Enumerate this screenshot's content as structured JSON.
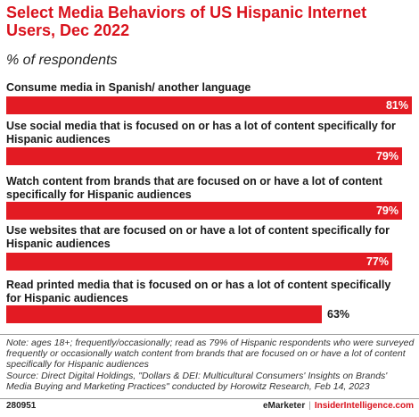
{
  "header": {
    "title": "Select Media Behaviors of US Hispanic Internet Users, Dec 2022",
    "subtitle": "% of respondents"
  },
  "chart_data": {
    "type": "bar",
    "orientation": "horizontal",
    "categories": [
      "Consume media in Spanish/ another language",
      "Use social media that is focused on or has a lot of content specifically for Hispanic audiences",
      "Watch content from brands that are focused on or have a lot of content specifically for Hispanic audiences",
      "Use websites that are focused on or have a lot of content specifically for Hispanic audiences",
      "Read printed media that is focused on or has a lot of content specifically for Hispanic audiences"
    ],
    "values": [
      81,
      79,
      79,
      77,
      63
    ],
    "value_labels": [
      "81%",
      "79%",
      "79%",
      "77%",
      "63%"
    ],
    "xlim": [
      0,
      81
    ],
    "bar_color": "#e31b23",
    "grid": false,
    "legend": "none"
  },
  "footer": {
    "note": "Note: ages 18+; frequently/occasionally; read as 79% of Hispanic respondents who were surveyed frequently or occasionally watch content from brands that are focused on or have a lot of content specifically for Hispanic audiences",
    "source": "Source: Direct Digital Holdings, \"Dollars & DEI: Multicultural Consumers' Insights on Brands' Media Buying and Marketing Practices\" conducted by Horowitz Research, Feb 14, 2023",
    "chart_id": "280951",
    "brand_a": "eMarketer",
    "separator": "|",
    "brand_b": "InsiderIntelligence.com"
  }
}
